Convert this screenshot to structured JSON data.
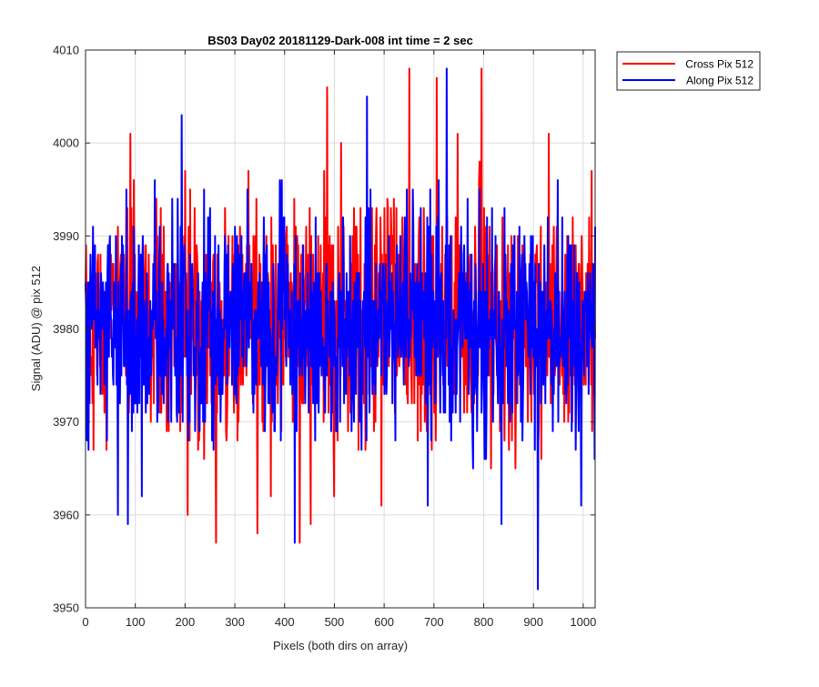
{
  "chart_data": {
    "type": "line",
    "title": "BS03 Day02 20181129-Dark-008 int time = 2 sec",
    "xlabel": "Pixels (both dirs on array)",
    "ylabel": "Signal (ADU) @ pix 512",
    "xlim": [
      0,
      1024
    ],
    "ylim": [
      3950,
      4010
    ],
    "xticks": [
      0,
      100,
      200,
      300,
      400,
      500,
      600,
      700,
      800,
      900,
      1000
    ],
    "yticks": [
      3950,
      3960,
      3970,
      3980,
      3990,
      4000,
      4010
    ],
    "xtick_labels": [
      "0",
      "100",
      "200",
      "300",
      "400",
      "500",
      "600",
      "700",
      "800",
      "900",
      "1000"
    ],
    "ytick_labels": [
      "3950",
      "3960",
      "3970",
      "3980",
      "3990",
      "4000",
      "4010"
    ],
    "grid": true,
    "legend_position": "outside-top-right",
    "series": [
      {
        "name": "Cross Pix 512",
        "color": "#ff0000",
        "n_points": 1024,
        "mean": 3980.5,
        "std": 6.2,
        "min": 3957,
        "max": 4008,
        "notable_points": [
          {
            "x": 90,
            "y": 4001
          },
          {
            "x": 205,
            "y": 3960
          },
          {
            "x": 262,
            "y": 3957
          },
          {
            "x": 345,
            "y": 3958
          },
          {
            "x": 430,
            "y": 3957
          },
          {
            "x": 485,
            "y": 4006
          },
          {
            "x": 650,
            "y": 4008
          },
          {
            "x": 705,
            "y": 4007
          },
          {
            "x": 795,
            "y": 4008
          },
          {
            "x": 930,
            "y": 4001
          }
        ]
      },
      {
        "name": "Along Pix 512",
        "color": "#0000ff",
        "n_points": 1024,
        "mean": 3980.0,
        "std": 6.0,
        "min": 3952,
        "max": 4008,
        "notable_points": [
          {
            "x": 65,
            "y": 3960
          },
          {
            "x": 85,
            "y": 3959
          },
          {
            "x": 193,
            "y": 4003
          },
          {
            "x": 420,
            "y": 3957
          },
          {
            "x": 565,
            "y": 4005
          },
          {
            "x": 725,
            "y": 4008
          },
          {
            "x": 835,
            "y": 3959
          },
          {
            "x": 908,
            "y": 3952
          }
        ]
      }
    ]
  }
}
